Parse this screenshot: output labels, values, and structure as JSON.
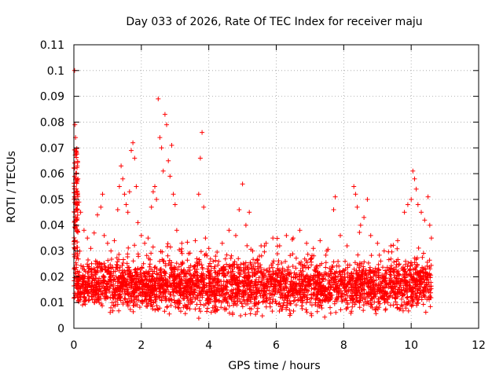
{
  "chart_data": {
    "type": "scatter",
    "title": "Day 033 of 2026, Rate Of TEC Index for receiver maju",
    "xlabel": "GPS time / hours",
    "ylabel": "ROTI / TECUs",
    "xlim": [
      0,
      12
    ],
    "ylim": [
      0,
      0.11
    ],
    "x_ticks": [
      0,
      2,
      4,
      6,
      8,
      10,
      12
    ],
    "x_tick_labels": [
      "0",
      "2",
      "4",
      "6",
      "8",
      "10",
      "12"
    ],
    "y_ticks": [
      0,
      0.01,
      0.02,
      0.03,
      0.04,
      0.05,
      0.06,
      0.07,
      0.08,
      0.09,
      0.1,
      0.11
    ],
    "y_tick_labels": [
      "0",
      "0.01",
      "0.02",
      "0.03",
      "0.04",
      "0.05",
      "0.06",
      "0.07",
      "0.08",
      "0.09",
      "0.1",
      "0.11"
    ],
    "grid": true,
    "marker": "+",
    "marker_color": "#ff0000",
    "data_x_range": [
      0,
      10.6
    ],
    "series": [
      {
        "name": "ROTI",
        "points": [
          [
            0.02,
            0.1
          ],
          [
            0.03,
            0.079
          ],
          [
            0.05,
            0.074
          ],
          [
            0.08,
            0.068
          ],
          [
            0.1,
            0.063
          ],
          [
            0.12,
            0.058
          ],
          [
            0.15,
            0.049
          ],
          [
            0.2,
            0.045
          ],
          [
            0.3,
            0.038
          ],
          [
            0.4,
            0.035
          ],
          [
            0.5,
            0.031
          ],
          [
            0.6,
            0.037
          ],
          [
            0.7,
            0.044
          ],
          [
            0.8,
            0.047
          ],
          [
            0.85,
            0.052
          ],
          [
            0.9,
            0.036
          ],
          [
            1.0,
            0.033
          ],
          [
            1.1,
            0.03
          ],
          [
            1.2,
            0.034
          ],
          [
            1.3,
            0.046
          ],
          [
            1.35,
            0.055
          ],
          [
            1.4,
            0.063
          ],
          [
            1.45,
            0.058
          ],
          [
            1.5,
            0.052
          ],
          [
            1.55,
            0.048
          ],
          [
            1.6,
            0.045
          ],
          [
            1.65,
            0.053
          ],
          [
            1.7,
            0.069
          ],
          [
            1.75,
            0.072
          ],
          [
            1.8,
            0.066
          ],
          [
            1.85,
            0.055
          ],
          [
            1.9,
            0.041
          ],
          [
            2.0,
            0.036
          ],
          [
            2.1,
            0.033
          ],
          [
            2.2,
            0.035
          ],
          [
            2.3,
            0.047
          ],
          [
            2.35,
            0.053
          ],
          [
            2.4,
            0.055
          ],
          [
            2.45,
            0.05
          ],
          [
            2.5,
            0.089
          ],
          [
            2.55,
            0.074
          ],
          [
            2.6,
            0.07
          ],
          [
            2.65,
            0.061
          ],
          [
            2.7,
            0.083
          ],
          [
            2.75,
            0.079
          ],
          [
            2.8,
            0.065
          ],
          [
            2.85,
            0.059
          ],
          [
            2.9,
            0.071
          ],
          [
            2.95,
            0.052
          ],
          [
            3.0,
            0.048
          ],
          [
            3.05,
            0.038
          ],
          [
            3.2,
            0.033
          ],
          [
            3.4,
            0.029
          ],
          [
            3.6,
            0.034
          ],
          [
            3.7,
            0.052
          ],
          [
            3.75,
            0.066
          ],
          [
            3.8,
            0.076
          ],
          [
            3.85,
            0.047
          ],
          [
            3.9,
            0.035
          ],
          [
            4.0,
            0.031
          ],
          [
            4.2,
            0.028
          ],
          [
            4.4,
            0.033
          ],
          [
            4.6,
            0.038
          ],
          [
            4.8,
            0.036
          ],
          [
            4.9,
            0.046
          ],
          [
            5.0,
            0.056
          ],
          [
            5.1,
            0.04
          ],
          [
            5.2,
            0.045
          ],
          [
            5.3,
            0.03
          ],
          [
            5.5,
            0.028
          ],
          [
            5.7,
            0.033
          ],
          [
            5.9,
            0.035
          ],
          [
            6.1,
            0.032
          ],
          [
            6.3,
            0.036
          ],
          [
            6.5,
            0.035
          ],
          [
            6.7,
            0.038
          ],
          [
            6.9,
            0.033
          ],
          [
            7.1,
            0.031
          ],
          [
            7.3,
            0.034
          ],
          [
            7.5,
            0.03
          ],
          [
            7.7,
            0.046
          ],
          [
            7.75,
            0.051
          ],
          [
            7.9,
            0.036
          ],
          [
            8.1,
            0.032
          ],
          [
            8.3,
            0.055
          ],
          [
            8.35,
            0.052
          ],
          [
            8.4,
            0.047
          ],
          [
            8.5,
            0.04
          ],
          [
            8.6,
            0.043
          ],
          [
            8.7,
            0.05
          ],
          [
            8.8,
            0.036
          ],
          [
            9.0,
            0.033
          ],
          [
            9.2,
            0.03
          ],
          [
            9.4,
            0.032
          ],
          [
            9.6,
            0.034
          ],
          [
            9.8,
            0.045
          ],
          [
            9.9,
            0.048
          ],
          [
            10.0,
            0.05
          ],
          [
            10.05,
            0.061
          ],
          [
            10.1,
            0.058
          ],
          [
            10.15,
            0.054
          ],
          [
            10.2,
            0.048
          ],
          [
            10.3,
            0.045
          ],
          [
            10.4,
            0.042
          ],
          [
            10.5,
            0.051
          ],
          [
            10.55,
            0.04
          ],
          [
            10.6,
            0.035
          ]
        ],
        "bulk_band": {
          "x_range": [
            0.1,
            10.6
          ],
          "y_range": [
            0.003,
            0.033
          ],
          "note": "dense cloud of points, most between 0.005 and 0.025"
        }
      }
    ]
  }
}
